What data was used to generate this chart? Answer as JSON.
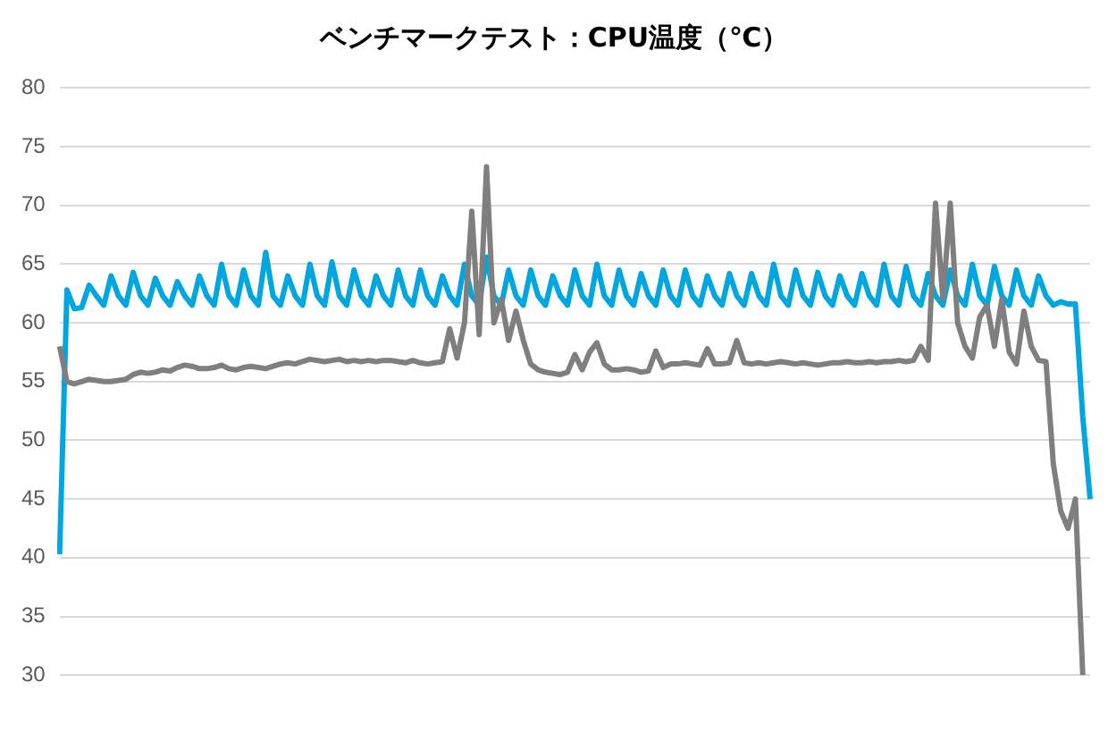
{
  "chart_data": {
    "type": "line",
    "title": "ベンチマークテスト：CPU温度（℃）",
    "categories": [
      null,
      null,
      null,
      null,
      null,
      null,
      null,
      null,
      null,
      null,
      null,
      null,
      null,
      null,
      null,
      null,
      null,
      null,
      null,
      null,
      null,
      null,
      null,
      null,
      null,
      null,
      null,
      null,
      null,
      null,
      null,
      null,
      null,
      null,
      null,
      null,
      null,
      null,
      null,
      null,
      null,
      null,
      null,
      null,
      null,
      null,
      null,
      null,
      null,
      null,
      null,
      null,
      null,
      null,
      null,
      null,
      null,
      null,
      null,
      null,
      null,
      null,
      null,
      null,
      null,
      null,
      null,
      null,
      null,
      null,
      null,
      null,
      null,
      null,
      null,
      null,
      null,
      null,
      null,
      null,
      null,
      null,
      null,
      null,
      null,
      null,
      null,
      null,
      null,
      null,
      null,
      null,
      null,
      null,
      null,
      null,
      null,
      null,
      null,
      null,
      null,
      null,
      null,
      null,
      null,
      null,
      null,
      null,
      null,
      null,
      null,
      null,
      null,
      null,
      null,
      null,
      null,
      null,
      null,
      null,
      null,
      null,
      null,
      null,
      null,
      null,
      null,
      null,
      null,
      null,
      null,
      null,
      null,
      null,
      null,
      null,
      null,
      null,
      null,
      null,
      null
    ],
    "series": [
      {
        "color": "#7f7f7f",
        "values": [
          58,
          55,
          54.8,
          55,
          55.2,
          55.1,
          55,
          55,
          55.1,
          55.2,
          55.6,
          55.8,
          55.7,
          55.8,
          56,
          55.9,
          56.2,
          56.4,
          56.3,
          56.1,
          56.1,
          56.2,
          56.4,
          56.1,
          56,
          56.2,
          56.3,
          56.2,
          56.1,
          56.3,
          56.5,
          56.6,
          56.5,
          56.7,
          56.9,
          56.8,
          56.7,
          56.8,
          56.9,
          56.7,
          56.8,
          56.7,
          56.8,
          56.7,
          56.8,
          56.8,
          56.7,
          56.6,
          56.8,
          56.6,
          56.5,
          56.6,
          56.7,
          59.5,
          57,
          60,
          69.5,
          59,
          73.3,
          60,
          62,
          58.5,
          61,
          58.5,
          56.5,
          56,
          55.8,
          55.7,
          55.6,
          55.8,
          57.3,
          56,
          57.5,
          58.3,
          56.5,
          56,
          56,
          56.1,
          56,
          55.8,
          55.9,
          57.6,
          56.2,
          56.5,
          56.5,
          56.6,
          56.5,
          56.4,
          57.8,
          56.5,
          56.5,
          56.6,
          58.5,
          56.6,
          56.5,
          56.6,
          56.5,
          56.6,
          56.7,
          56.6,
          56.5,
          56.6,
          56.5,
          56.4,
          56.5,
          56.6,
          56.6,
          56.7,
          56.6,
          56.6,
          56.7,
          56.6,
          56.7,
          56.7,
          56.8,
          56.7,
          56.8,
          58,
          56.8,
          70.2,
          62,
          70.2,
          60,
          58,
          57,
          60.5,
          61.5,
          58,
          62,
          57.5,
          56.5,
          61,
          58,
          56.8,
          56.7,
          48,
          44,
          42.5,
          45,
          30,
          null
        ]
      },
      {
        "color": "#00a6e0",
        "values": [
          40.3,
          62.8,
          61.2,
          61.3,
          63.2,
          62.3,
          61.5,
          64,
          62.3,
          61.5,
          64.3,
          62.3,
          61.5,
          63.8,
          62.3,
          61.5,
          63.5,
          62.3,
          61.5,
          64,
          62.3,
          61.5,
          65,
          62.3,
          61.5,
          64.5,
          62.3,
          61.5,
          66,
          62.3,
          61.5,
          64,
          62.3,
          61.5,
          65,
          62.3,
          61.5,
          65.2,
          62.3,
          61.5,
          64.5,
          62.3,
          61.5,
          64,
          62.3,
          61.5,
          64.5,
          62.3,
          61.5,
          64.5,
          62.3,
          61.5,
          64,
          62.3,
          61.5,
          65,
          62.3,
          61.5,
          65.6,
          62.3,
          61.5,
          64.5,
          62.3,
          61.5,
          64.5,
          62.3,
          61.5,
          64,
          62.3,
          61.5,
          64.5,
          62.3,
          61.5,
          65,
          62.3,
          61.5,
          64.5,
          62.3,
          61.5,
          64.2,
          62.3,
          61.5,
          64.5,
          62.3,
          61.5,
          64.5,
          62.3,
          61.5,
          64,
          62.3,
          61.5,
          64.2,
          62.3,
          61.5,
          64.2,
          62.3,
          61.5,
          65,
          62.3,
          61.5,
          64.5,
          62.3,
          61.5,
          64.3,
          62.3,
          61.5,
          64,
          62.3,
          61.5,
          64.2,
          62.3,
          61.5,
          65,
          62.3,
          61.5,
          64.8,
          62.3,
          61.5,
          64.2,
          62.3,
          61.5,
          64.5,
          62.3,
          61.5,
          65,
          62.3,
          61.5,
          64.8,
          62.3,
          61.5,
          64.5,
          62.3,
          61.5,
          64,
          62.3,
          61.5,
          61.8,
          61.6,
          61.6,
          52,
          45
        ]
      }
    ],
    "ylim": [
      30,
      80
    ],
    "yticks": [
      30,
      35,
      40,
      45,
      50,
      55,
      60,
      65,
      70,
      75,
      80
    ],
    "grid": "y",
    "legend": false,
    "marker": "none",
    "line_style": "solid"
  }
}
